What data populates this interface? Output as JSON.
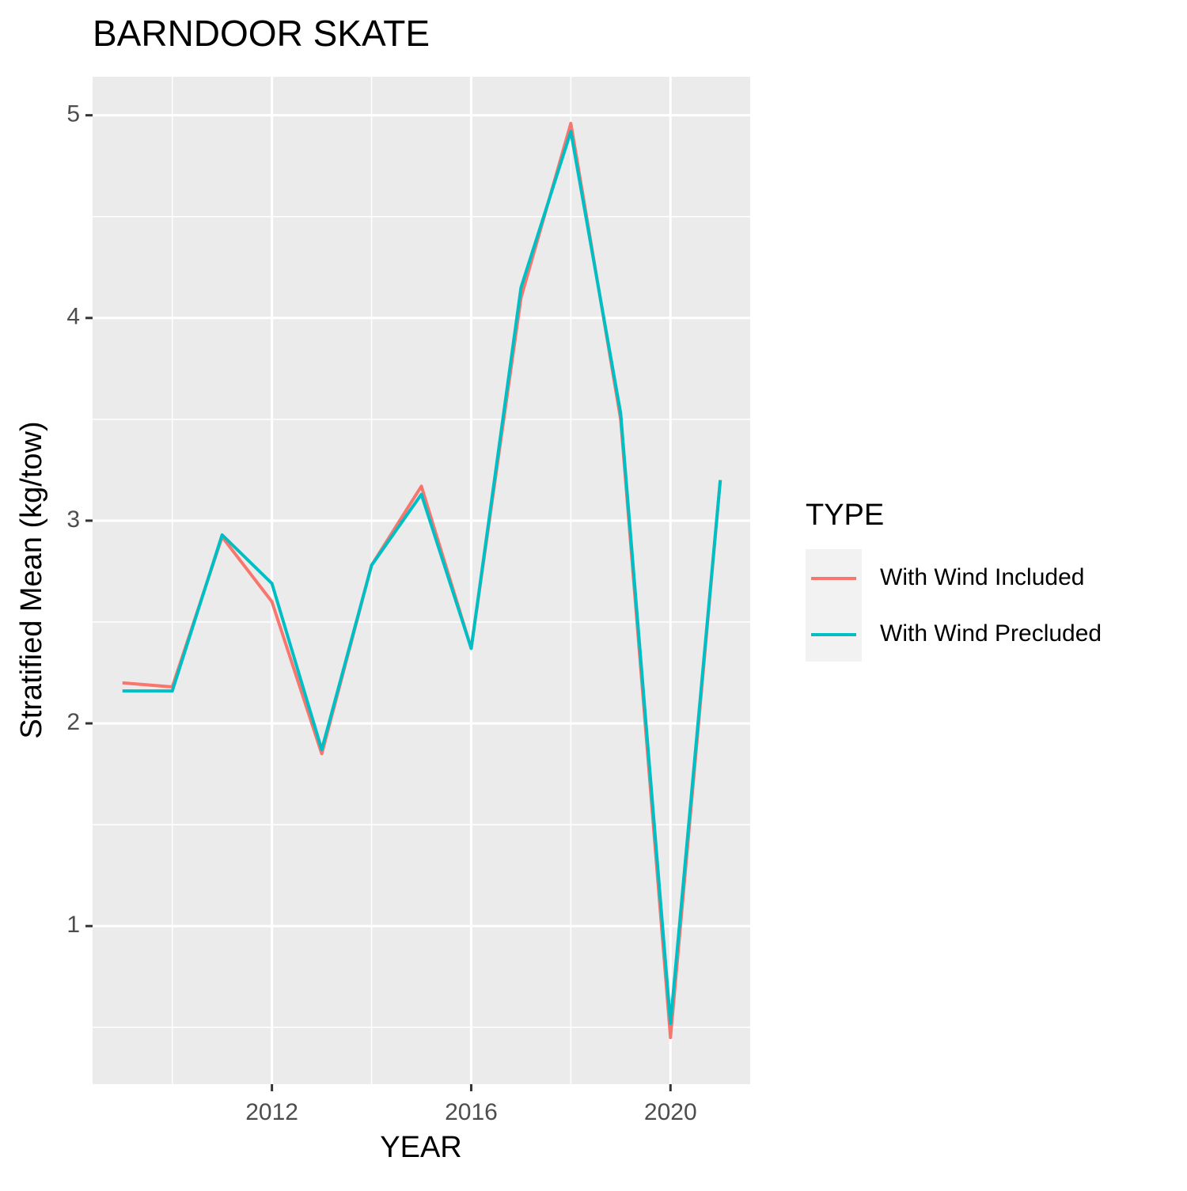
{
  "chart_data": {
    "type": "line",
    "title": "BARNDOOR SKATE",
    "x_label": "YEAR",
    "y_label": "Stratified Mean (kg/tow)",
    "x": [
      2009,
      2010,
      2011,
      2012,
      2013,
      2014,
      2015,
      2016,
      2017,
      2018,
      2019,
      2020,
      2021
    ],
    "series": [
      {
        "name": "With Wind Included",
        "color": "#F8766D",
        "values": [
          2.2,
          2.18,
          2.92,
          2.6,
          1.85,
          2.78,
          3.17,
          2.37,
          4.1,
          4.96,
          3.5,
          0.45,
          3.2
        ]
      },
      {
        "name": "With Wind Precluded",
        "color": "#00BFC4",
        "values": [
          2.16,
          2.16,
          2.93,
          2.69,
          1.87,
          2.78,
          3.13,
          2.37,
          4.15,
          4.92,
          3.53,
          0.52,
          3.2
        ]
      }
    ],
    "xlim": [
      2008.4,
      2021.6
    ],
    "ylim": [
      0.22,
      5.19
    ],
    "xticks": [
      2012,
      2016,
      2020
    ],
    "yticks": [
      1,
      2,
      3,
      4,
      5
    ],
    "x_minor_ticks": [
      2010,
      2014,
      2018
    ],
    "y_minor_ticks": [
      0.5,
      1.5,
      2.5,
      3.5,
      4.5
    ],
    "grid": true,
    "legend_title": "TYPE",
    "legend_position": "right"
  }
}
